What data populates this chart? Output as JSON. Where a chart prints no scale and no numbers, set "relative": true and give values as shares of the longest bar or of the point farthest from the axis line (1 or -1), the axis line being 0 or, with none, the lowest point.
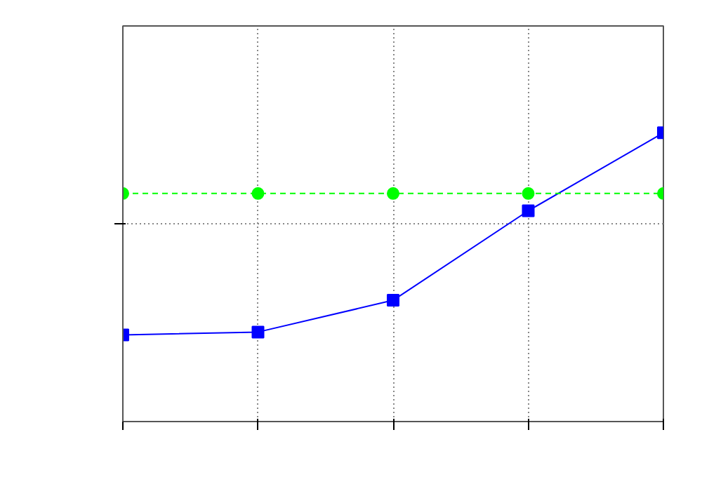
{
  "chart_data": {
    "type": "line",
    "relative": true,
    "categories": [
      null,
      null,
      null,
      null,
      null
    ],
    "series": [
      {
        "color": "#0000ff",
        "marker": "square",
        "line_style": "solid",
        "values": [
          0.3,
          0.31,
          0.42,
          0.73,
          1.0
        ]
      },
      {
        "color": "#00ff00",
        "marker": "circle",
        "line_style": "dashed",
        "values": [
          0.79,
          0.79,
          0.79,
          0.79,
          0.79
        ]
      }
    ],
    "grid": true,
    "tick_labels": false
  }
}
